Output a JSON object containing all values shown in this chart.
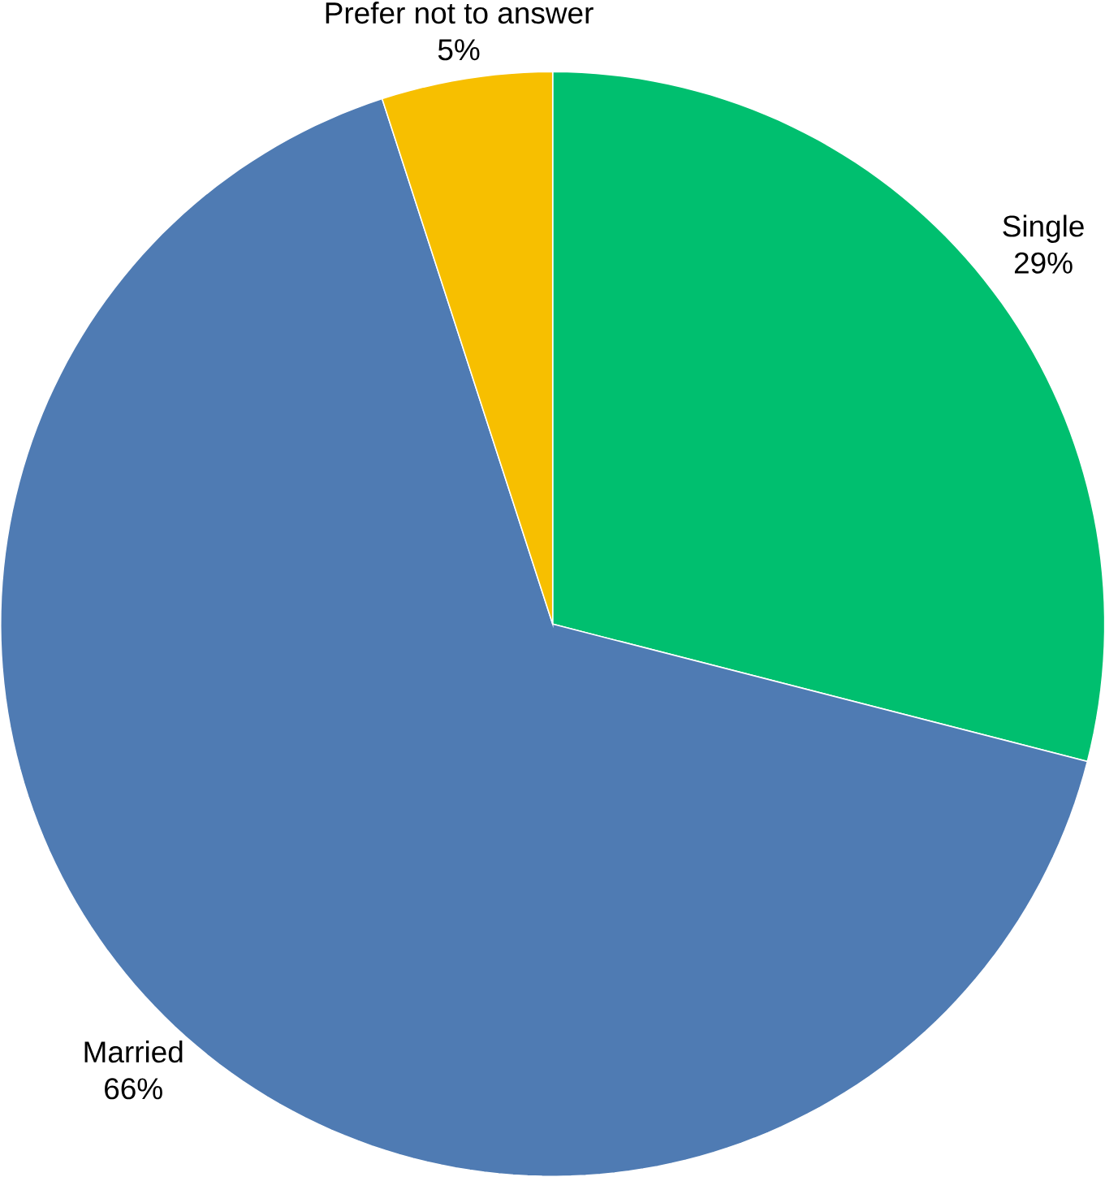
{
  "chart_data": {
    "type": "pie",
    "categories": [
      "Single",
      "Married",
      "Prefer not to answer"
    ],
    "values": [
      29,
      66,
      5
    ],
    "value_labels": [
      "29%",
      "66%",
      "5%"
    ],
    "colors": [
      "#00bf6f",
      "#4f7bb3",
      "#f7bf00"
    ]
  }
}
